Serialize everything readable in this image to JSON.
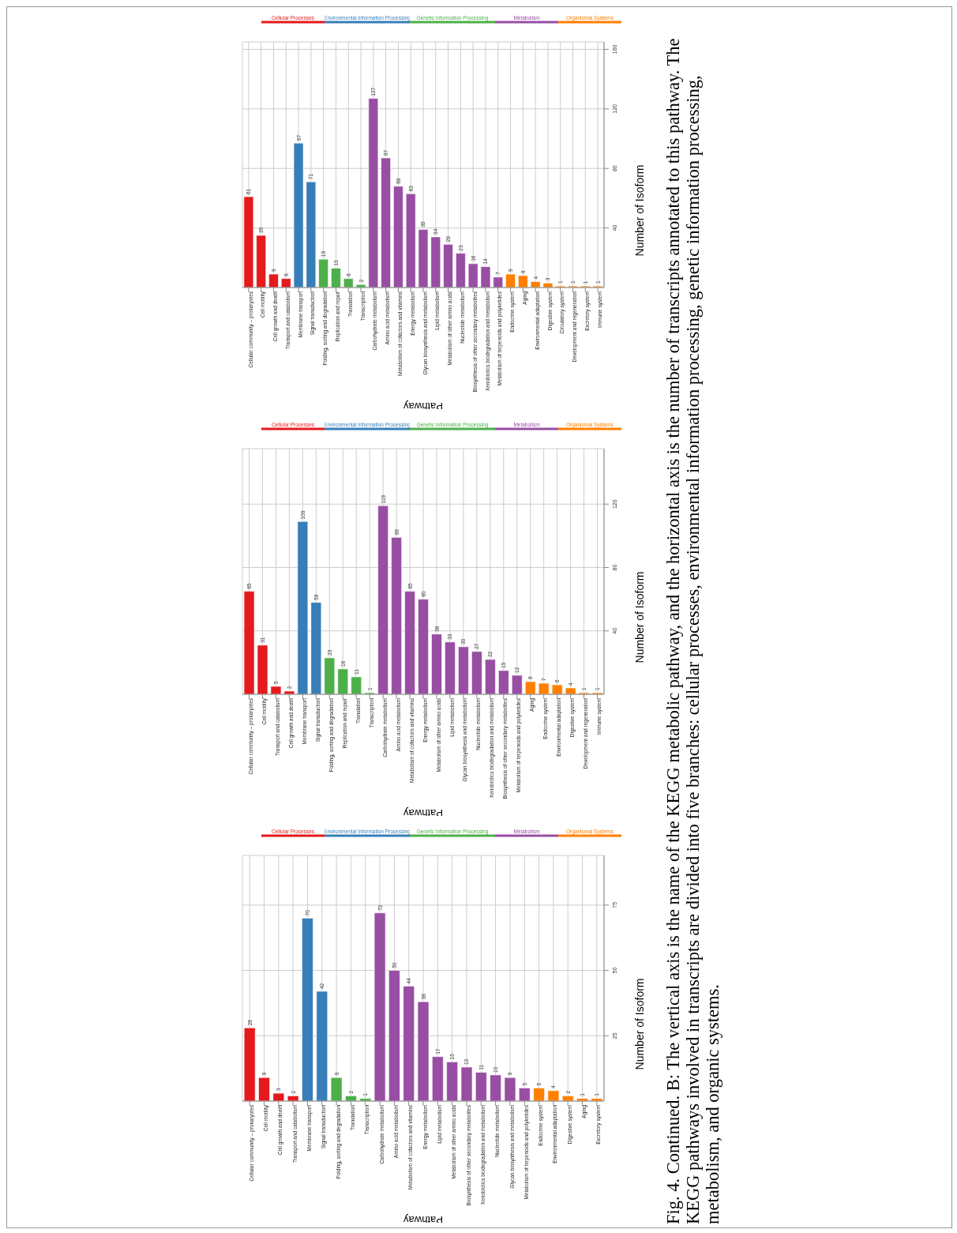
{
  "chart_data": [
    {
      "type": "bar",
      "xlabel": "Pathway",
      "ylabel": "Number of Isoform",
      "ylim": [
        0,
        165
      ],
      "yticks": [
        40,
        80,
        120,
        160
      ],
      "grid": true,
      "legend": "top",
      "data_labels": true,
      "categories": [
        "Cellular community – prokaryotes",
        "Cell motility",
        "Cell growth and death",
        "Transport and catabolism",
        "Membrane transport",
        "Signal transduction",
        "Folding, sorting and degradation",
        "Replication and repair",
        "Translation",
        "Transcription",
        "Carbohydrate metabolism",
        "Amino acid metabolism",
        "Metabolism of cofactors and vitamins",
        "Energy metabolism",
        "Glycan biosynthesis and metabolism",
        "Lipid metabolism",
        "Metabolism of other amino acids",
        "Nucleotide metabolism",
        "Biosynthesis of other secondary metabolites",
        "Xenobiotics biodegradation and metabolism",
        "Metabolism of terpenoids and polyketides",
        "Endocrine system",
        "Aging",
        "Environmental adaptation",
        "Digestive system",
        "Circulatory system",
        "Development and regeneration",
        "Excretory system",
        "Immune system"
      ],
      "series": [
        {
          "name": "Cellular Processes",
          "color": "#e41a1c",
          "values": [
            61,
            35,
            9,
            6,
            null,
            null,
            null,
            null,
            null,
            null,
            null,
            null,
            null,
            null,
            null,
            null,
            null,
            null,
            null,
            null,
            null,
            null,
            null,
            null,
            null,
            null,
            null,
            null,
            null
          ]
        },
        {
          "name": "Environmental Information Processing",
          "color": "#377eb8",
          "values": [
            null,
            null,
            null,
            null,
            97,
            71,
            null,
            null,
            null,
            null,
            null,
            null,
            null,
            null,
            null,
            null,
            null,
            null,
            null,
            null,
            null,
            null,
            null,
            null,
            null,
            null,
            null,
            null,
            null
          ]
        },
        {
          "name": "Genetic Information Processing",
          "color": "#4daf4a",
          "values": [
            null,
            null,
            null,
            null,
            null,
            null,
            19,
            13,
            6,
            2,
            null,
            null,
            null,
            null,
            null,
            null,
            null,
            null,
            null,
            null,
            null,
            null,
            null,
            null,
            null,
            null,
            null,
            null,
            null
          ]
        },
        {
          "name": "Metabolism",
          "color": "#984ea3",
          "values": [
            null,
            null,
            null,
            null,
            null,
            null,
            null,
            null,
            null,
            null,
            127,
            87,
            68,
            63,
            39,
            34,
            29,
            23,
            16,
            14,
            7,
            null,
            null,
            null,
            null,
            null,
            null,
            null,
            null
          ]
        },
        {
          "name": "Organismal Systems",
          "color": "#ff7f00",
          "values": [
            null,
            null,
            null,
            null,
            null,
            null,
            null,
            null,
            null,
            null,
            null,
            null,
            null,
            null,
            null,
            null,
            null,
            null,
            null,
            null,
            null,
            9,
            8,
            4,
            3,
            1,
            1,
            1,
            1
          ]
        }
      ]
    },
    {
      "type": "bar",
      "xlabel": "Pathway",
      "ylabel": "Number of Isoform",
      "ylim": [
        0,
        155
      ],
      "yticks": [
        40,
        80,
        120
      ],
      "grid": true,
      "legend": "top",
      "data_labels": true,
      "categories": [
        "Cellular community – prokaryotes",
        "Cell motility",
        "Transport and catabolism",
        "Cell growth and death",
        "Membrane transport",
        "Signal transduction",
        "Folding, sorting and degradation",
        "Replication and repair",
        "Translation",
        "Transcription",
        "Carbohydrate metabolism",
        "Amino acid metabolism",
        "Metabolism of cofactors and vitamins",
        "Energy metabolism",
        "Metabolism of other amino acids",
        "Lipid metabolism",
        "Glycan biosynthesis and metabolism",
        "Nucleotide metabolism",
        "Xenobiotics biodegradation and metabolism",
        "Biosynthesis of other secondary metabolites",
        "Metabolism of terpenoids and polyketides",
        "Aging",
        "Endocrine system",
        "Environmental adaptation",
        "Digestive system",
        "Development and regeneration",
        "Immune system"
      ],
      "series": [
        {
          "name": "Cellular Processes",
          "color": "#e41a1c",
          "values": [
            65,
            31,
            5,
            2,
            null,
            null,
            null,
            null,
            null,
            null,
            null,
            null,
            null,
            null,
            null,
            null,
            null,
            null,
            null,
            null,
            null,
            null,
            null,
            null,
            null,
            null,
            null
          ]
        },
        {
          "name": "Environmental Information Processing",
          "color": "#377eb8",
          "values": [
            null,
            null,
            null,
            null,
            109,
            58,
            null,
            null,
            null,
            null,
            null,
            null,
            null,
            null,
            null,
            null,
            null,
            null,
            null,
            null,
            null,
            null,
            null,
            null,
            null,
            null,
            null
          ]
        },
        {
          "name": "Genetic Information Processing",
          "color": "#4daf4a",
          "values": [
            null,
            null,
            null,
            null,
            null,
            null,
            23,
            16,
            11,
            1,
            null,
            null,
            null,
            null,
            null,
            null,
            null,
            null,
            null,
            null,
            null,
            null,
            null,
            null,
            null,
            null,
            null
          ]
        },
        {
          "name": "Metabolism",
          "color": "#984ea3",
          "values": [
            null,
            null,
            null,
            null,
            null,
            null,
            null,
            null,
            null,
            null,
            119,
            99,
            65,
            60,
            38,
            33,
            30,
            27,
            22,
            15,
            12,
            null,
            null,
            null,
            null,
            null,
            null
          ]
        },
        {
          "name": "Organismal Systems",
          "color": "#ff7f00",
          "values": [
            null,
            null,
            null,
            null,
            null,
            null,
            null,
            null,
            null,
            null,
            null,
            null,
            null,
            null,
            null,
            null,
            null,
            null,
            null,
            null,
            null,
            8,
            7,
            6,
            4,
            1,
            1
          ]
        }
      ]
    },
    {
      "type": "bar",
      "xlabel": "Pathway",
      "ylabel": "Number of Isoform",
      "ylim": [
        0,
        94
      ],
      "yticks": [
        25,
        50,
        75
      ],
      "grid": true,
      "legend": "top",
      "data_labels": true,
      "categories": [
        "Cellular community – prokaryotes",
        "Cell motility",
        "Cell growth and death",
        "Transport and catabolism",
        "Membrane transport",
        "Signal transduction",
        "Folding, sorting and degradation",
        "Translation",
        "Transcription",
        "Carbohydrate metabolism",
        "Amino acid metabolism",
        "Metabolism of cofactors and vitamins",
        "Energy metabolism",
        "Lipid metabolism",
        "Metabolism of other amino acids",
        "Biosynthesis of other secondary metabolites",
        "Xenobiotics biodegradation and metabolism",
        "Nucleotide metabolism",
        "Glycan biosynthesis and metabolism",
        "Metabolism of terpenoids and polyketides",
        "Endocrine system",
        "Environmental adaptation",
        "Digestive system",
        "Aging",
        "Excretory system"
      ],
      "series": [
        {
          "name": "Cellular Processes",
          "color": "#e41a1c",
          "values": [
            28,
            9,
            3,
            2,
            null,
            null,
            null,
            null,
            null,
            null,
            null,
            null,
            null,
            null,
            null,
            null,
            null,
            null,
            null,
            null,
            null,
            null,
            null,
            null,
            null
          ]
        },
        {
          "name": "Environmental Information Processing",
          "color": "#377eb8",
          "values": [
            null,
            null,
            null,
            null,
            70,
            42,
            null,
            null,
            null,
            null,
            null,
            null,
            null,
            null,
            null,
            null,
            null,
            null,
            null,
            null,
            null,
            null,
            null,
            null,
            null
          ]
        },
        {
          "name": "Genetic Information Processing",
          "color": "#4daf4a",
          "values": [
            null,
            null,
            null,
            null,
            null,
            null,
            9,
            2,
            1,
            null,
            null,
            null,
            null,
            null,
            null,
            null,
            null,
            null,
            null,
            null,
            null,
            null,
            null,
            null,
            null
          ]
        },
        {
          "name": "Metabolism",
          "color": "#984ea3",
          "values": [
            null,
            null,
            null,
            null,
            null,
            null,
            null,
            null,
            null,
            72,
            50,
            44,
            38,
            17,
            15,
            13,
            11,
            10,
            9,
            5,
            null,
            null,
            null,
            null,
            null
          ]
        },
        {
          "name": "Organismal Systems",
          "color": "#ff7f00",
          "values": [
            null,
            null,
            null,
            null,
            null,
            null,
            null,
            null,
            null,
            null,
            null,
            null,
            null,
            null,
            null,
            null,
            null,
            null,
            null,
            null,
            5,
            4,
            2,
            1,
            1
          ]
        }
      ],
      "annotations": [
        "Fig. 4. Continued. B: The vertical axis is the name of the KEGG metabolic pathway, and the horizontal axis is the number of transcripts annotated to this pathway. The KEGG pathways involved in transcripts are divided into five branches: cellular processes, environmental information processing, genetic information processing, metabolism, and organic systems."
      ]
    }
  ]
}
